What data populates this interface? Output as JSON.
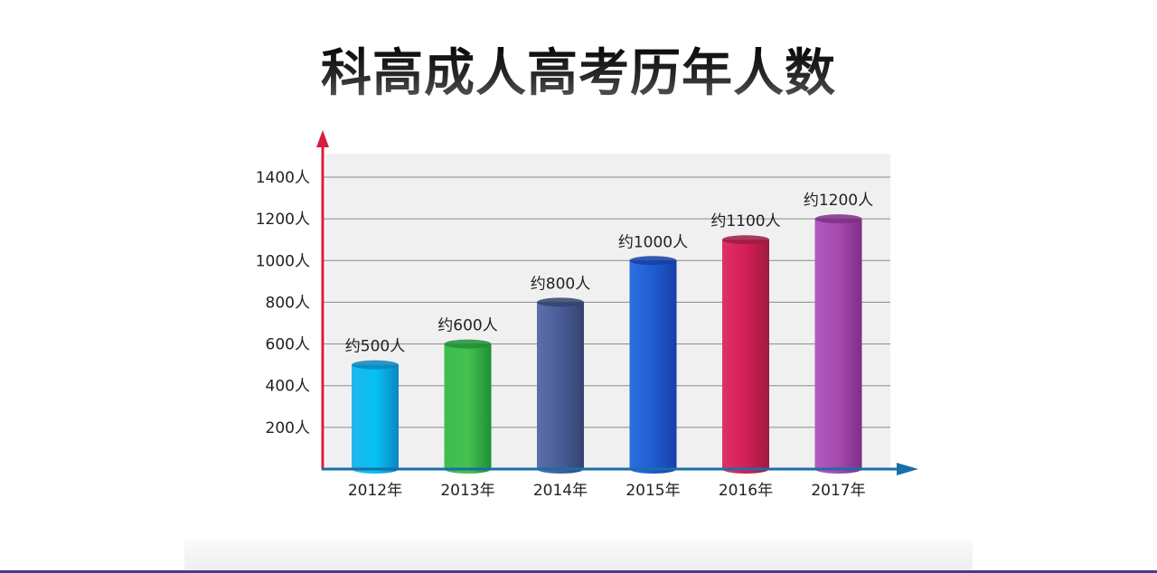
{
  "title": "科高成人高考历年人数",
  "chart_data": {
    "type": "bar",
    "categories": [
      "2012年",
      "2013年",
      "2014年",
      "2015年",
      "2016年",
      "2017年"
    ],
    "values": [
      500,
      600,
      800,
      1000,
      1100,
      1200
    ],
    "data_labels": [
      "约500人",
      "约600人",
      "约800人",
      "约1000人",
      "约1100人",
      "约1200人"
    ],
    "ylim": [
      0,
      1400
    ],
    "yticks": [
      200,
      400,
      600,
      800,
      1000,
      1200,
      1400
    ],
    "ytick_labels": [
      "200人",
      "400人",
      "600人",
      "800人",
      "1000人",
      "1200人",
      "1400人"
    ],
    "grid": true,
    "bar_colors": [
      [
        "#1fb6ea",
        "#06c2f4",
        "#0a86bf"
      ],
      [
        "#3dbd4f",
        "#45c24f",
        "#1f8f36"
      ],
      [
        "#5d6ea8",
        "#4a5c97",
        "#34436f"
      ],
      [
        "#2d6fe0",
        "#1f5cd2",
        "#163fa6"
      ],
      [
        "#e0316a",
        "#d41e56",
        "#9c1b40"
      ],
      [
        "#b25ac0",
        "#a64aad",
        "#7c2f86"
      ]
    ],
    "axis_colors": {
      "y": "#d81e3c",
      "x": "#1a6ea8"
    }
  }
}
